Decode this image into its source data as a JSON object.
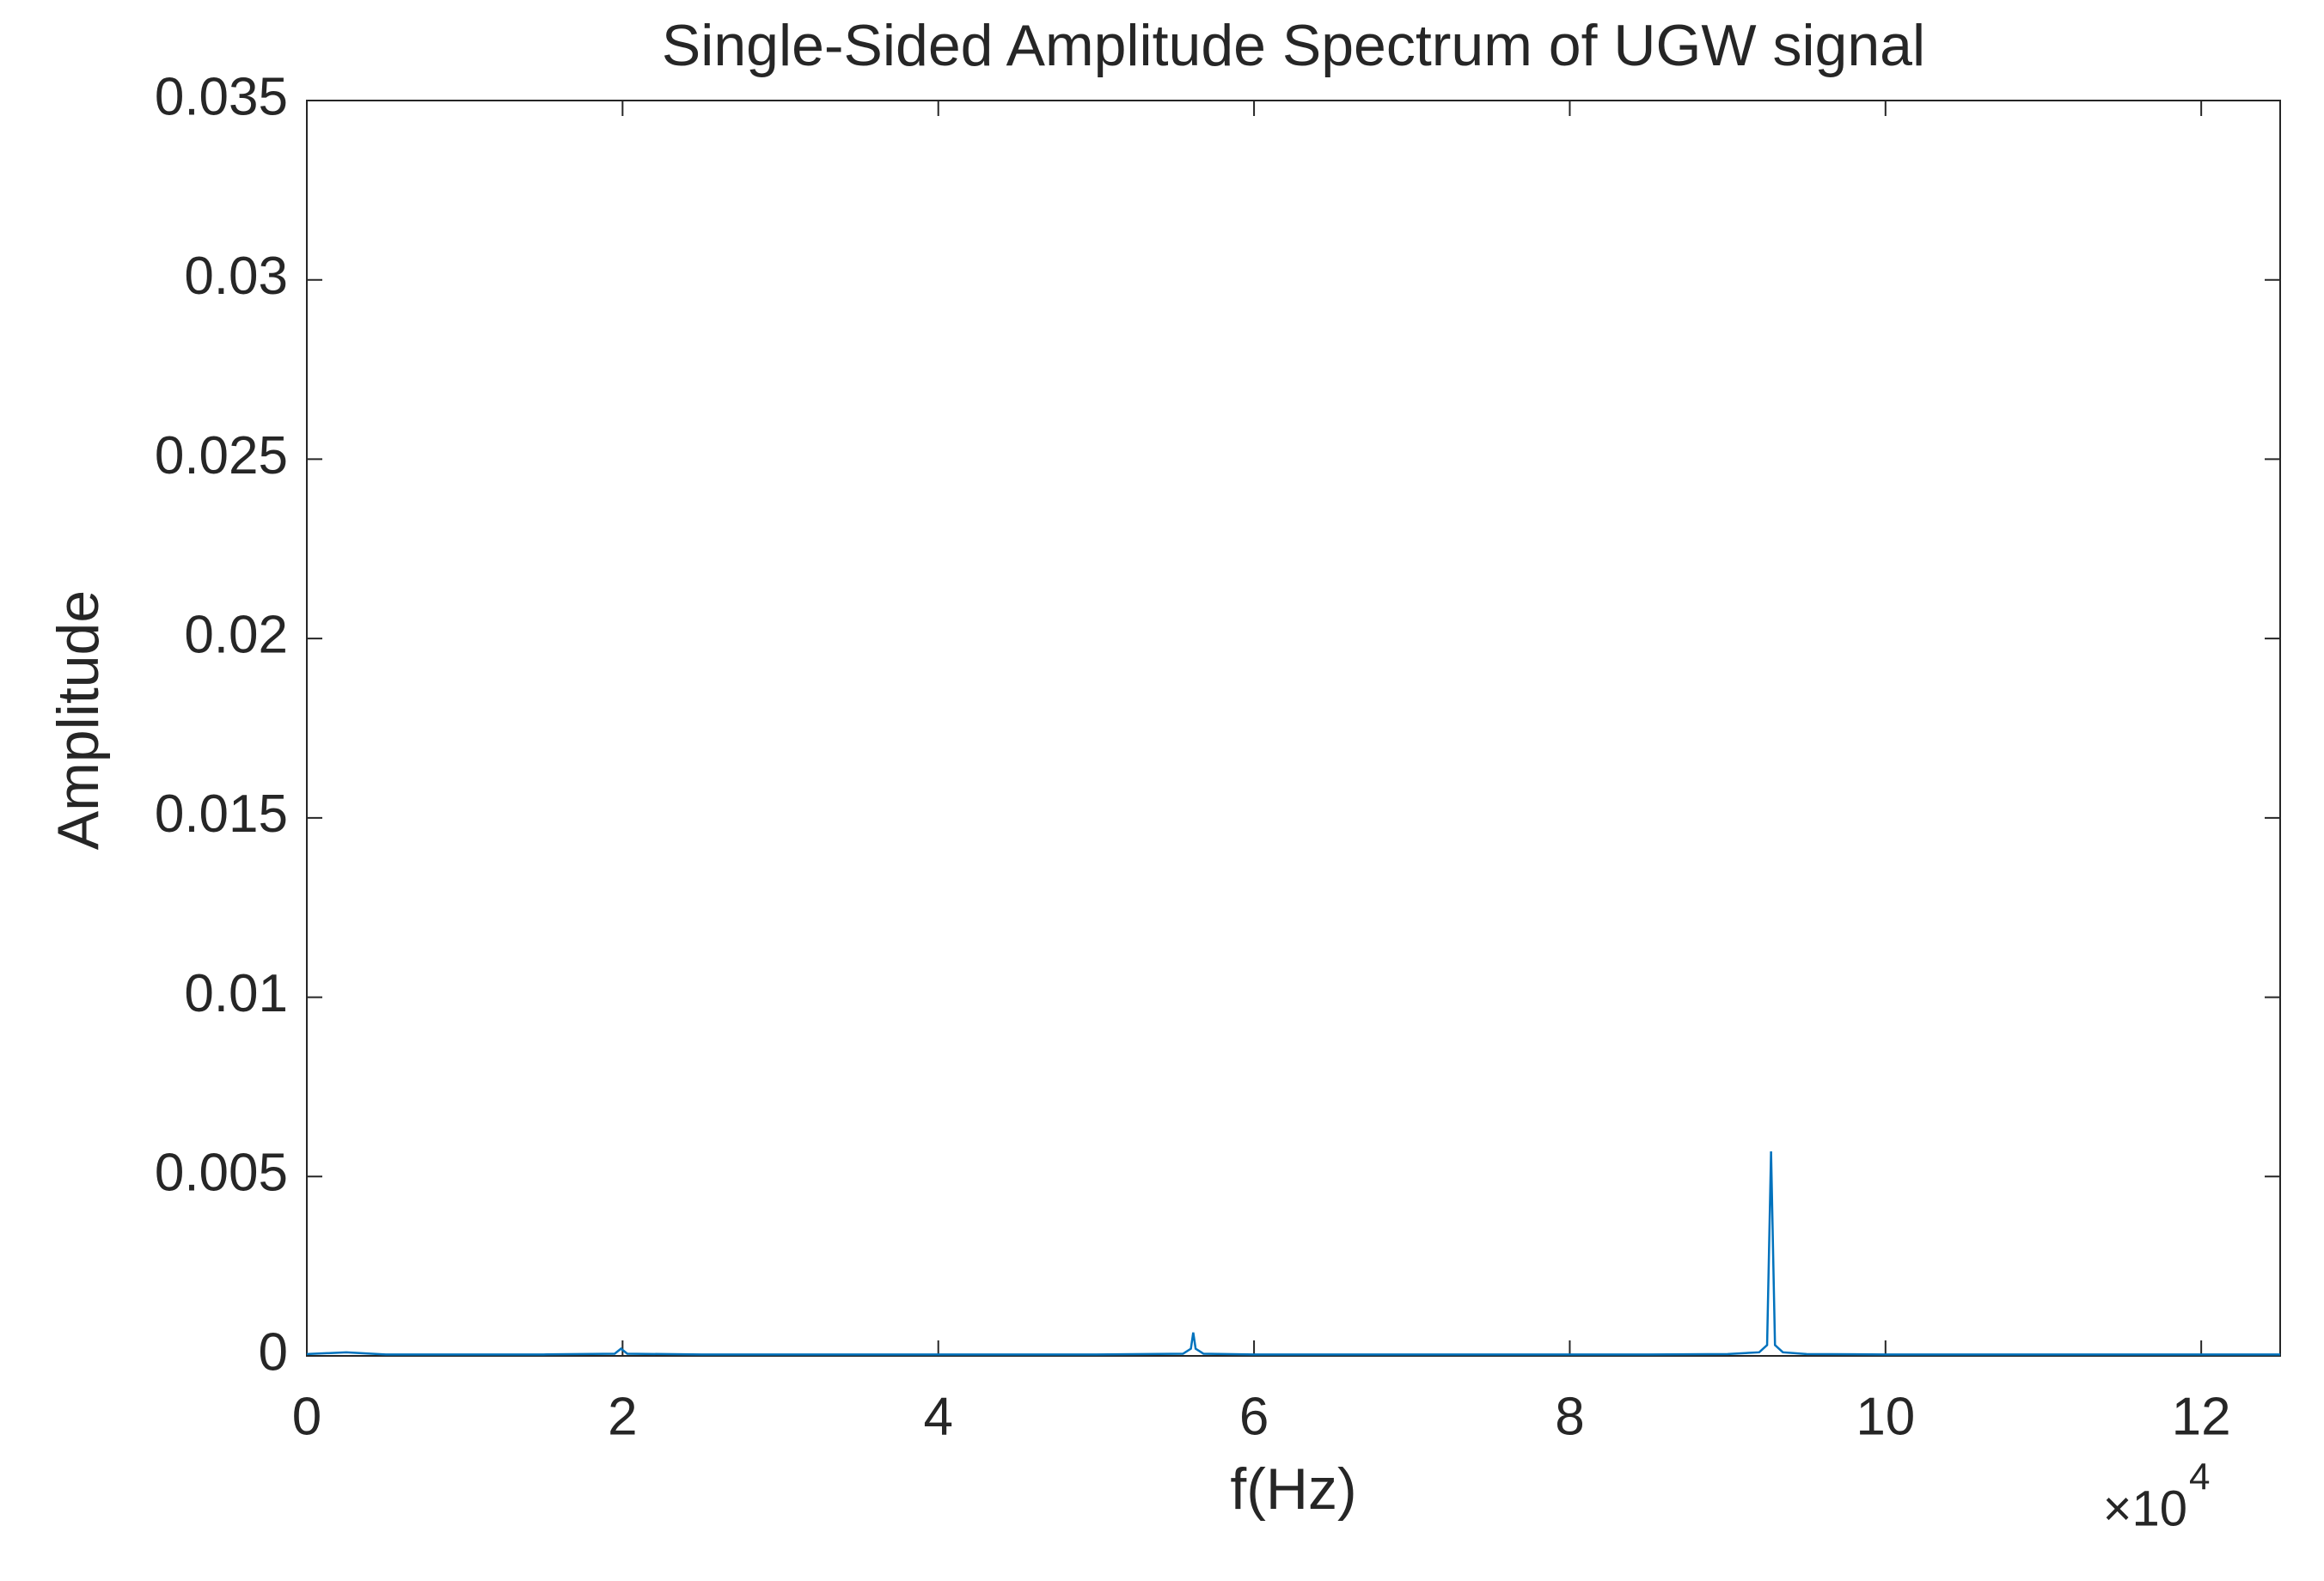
{
  "chart_data": {
    "type": "line",
    "title": "Single-Sided Amplitude Spectrum of UGW signal",
    "x_label": "f(Hz)",
    "y_label": "Amplitude",
    "x_multiplier": {
      "base": "×10",
      "exponent": "4"
    },
    "x": [
      0,
      2500,
      5000,
      10000,
      15000,
      19500,
      19900,
      20300,
      25000,
      30000,
      35000,
      40000,
      45000,
      50000,
      55500,
      56000,
      56150,
      56300,
      56800,
      60000,
      65000,
      70000,
      75000,
      80000,
      85000,
      90000,
      92000,
      92500,
      92750,
      93000,
      93500,
      95000,
      100000,
      105000,
      110000,
      115000,
      120000,
      125000
    ],
    "series": [
      {
        "name": "Amplitude",
        "color": "#0072bd",
        "values": [
          5e-05,
          0.0001,
          4e-05,
          4e-05,
          4e-05,
          6e-05,
          0.0002,
          6e-05,
          4e-05,
          4e-05,
          4e-05,
          4e-05,
          4e-05,
          4e-05,
          6e-05,
          0.0002,
          0.00065,
          0.0002,
          6e-05,
          4e-05,
          4e-05,
          4e-05,
          4e-05,
          4e-05,
          4e-05,
          5e-05,
          0.0001,
          0.0003,
          0.0057,
          0.0003,
          0.0001,
          5e-05,
          4e-05,
          4e-05,
          4e-05,
          4e-05,
          4e-05,
          4e-05
        ]
      }
    ],
    "xlim": [
      0,
      125000
    ],
    "xticks": [
      {
        "value": 0,
        "label": "0"
      },
      {
        "value": 20000,
        "label": "2"
      },
      {
        "value": 40000,
        "label": "4"
      },
      {
        "value": 60000,
        "label": "6"
      },
      {
        "value": 80000,
        "label": "8"
      },
      {
        "value": 100000,
        "label": "10"
      },
      {
        "value": 120000,
        "label": "12"
      }
    ],
    "ylim": [
      0,
      0.035
    ],
    "yticks": [
      0,
      0.005,
      0.01,
      0.015,
      0.02,
      0.025,
      0.03,
      0.035
    ],
    "grid": false
  }
}
